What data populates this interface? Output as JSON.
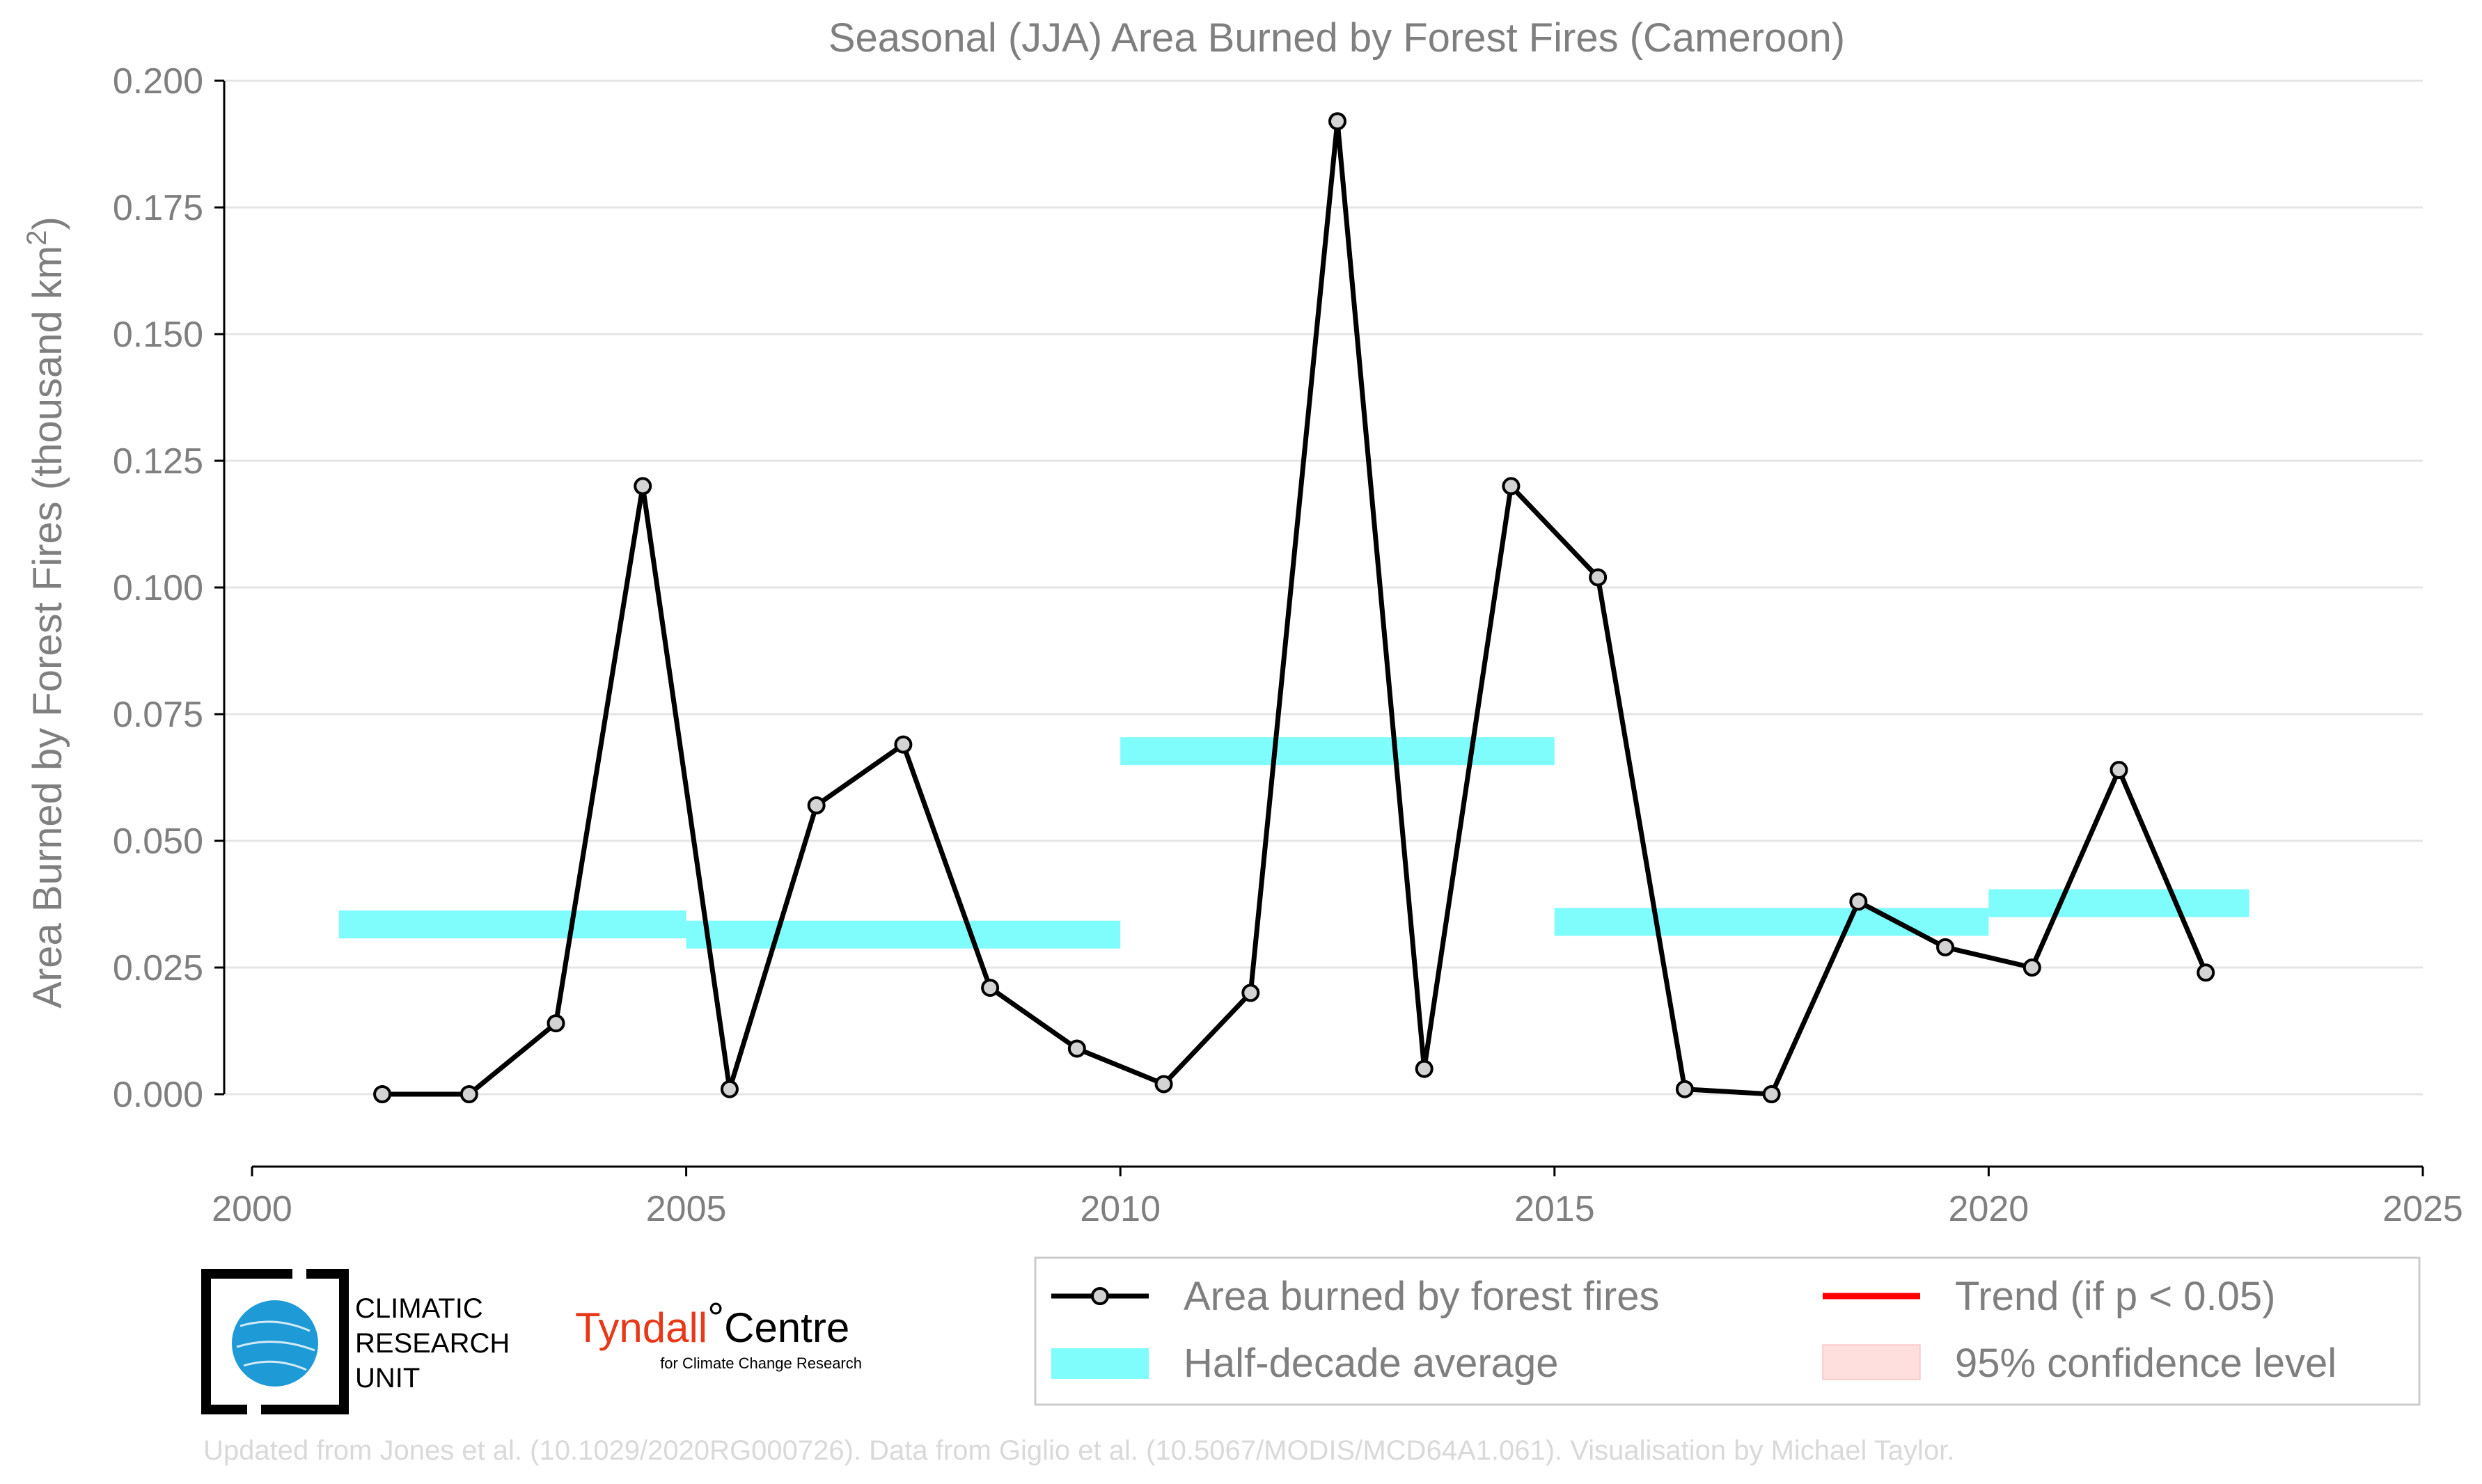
{
  "chart_data": {
    "type": "line",
    "title": "Seasonal (JJA) Area Burned by Forest Fires (Cameroon)",
    "ylabel": "Area Burned by Forest Fires (thousand km",
    "ylabel_sup": "2",
    "ylabel_close": ")",
    "xlabel": "",
    "xlim": [
      2000,
      2025
    ],
    "ylim": [
      -0.014,
      0.2
    ],
    "grid": true,
    "x_ticks": [
      "2000",
      "2005",
      "2010",
      "2015",
      "2020",
      "2025"
    ],
    "y_ticks": [
      "0.000",
      "0.025",
      "0.050",
      "0.075",
      "0.100",
      "0.125",
      "0.150",
      "0.175",
      "0.200"
    ],
    "series": [
      {
        "name": "Area burned by forest fires",
        "color": "#000000",
        "marker_fill": "#d3d3d3",
        "x": [
          2001.5,
          2002.5,
          2003.5,
          2004.5,
          2005.5,
          2006.5,
          2007.5,
          2008.5,
          2009.5,
          2010.5,
          2011.5,
          2012.5,
          2013.5,
          2014.5,
          2015.5,
          2016.5,
          2017.5,
          2018.5,
          2019.5,
          2020.5,
          2021.5,
          2022.5
        ],
        "y": [
          0.0,
          0.0,
          0.014,
          0.12,
          0.001,
          0.057,
          0.069,
          0.021,
          0.009,
          0.002,
          0.02,
          0.192,
          0.005,
          0.12,
          0.102,
          0.001,
          0.0,
          0.038,
          0.029,
          0.025,
          0.064,
          0.024
        ]
      }
    ],
    "half_decade_averages": {
      "name": "Half-decade average",
      "color": "#7ffcfc",
      "bands": [
        {
          "x0": 2001,
          "x1": 2005,
          "y": 0.0335
        },
        {
          "x0": 2005,
          "x1": 2010,
          "y": 0.0315
        },
        {
          "x0": 2010,
          "x1": 2015,
          "y": 0.0677
        },
        {
          "x0": 2015,
          "x1": 2020,
          "y": 0.034
        },
        {
          "x0": 2020,
          "x1": 2023,
          "y": 0.0377
        }
      ]
    },
    "legend": {
      "placement": "bottom-right",
      "entries": [
        {
          "key": "area",
          "label": "Area burned by forest fires"
        },
        {
          "key": "trend",
          "label": "Trend (if p < 0.05)",
          "color": "#ff0000"
        },
        {
          "key": "half",
          "label": "Half-decade average",
          "color": "#7ffcfc"
        },
        {
          "key": "ci",
          "label": "95% confidence level",
          "color": "#ffdede"
        }
      ]
    }
  },
  "logos": {
    "cru_line1": "CLIMATIC",
    "cru_line2": "RESEARCH",
    "cru_line3": "UNIT",
    "tyndall_main": "Tyndall",
    "tyndall_degree": "°",
    "tyndall_centre": "Centre",
    "tyndall_sub": "for Climate Change Research"
  },
  "footer": "Updated from Jones et al. (10.1029/2020RG000726). Data from Giglio et al. (10.5067/MODIS/MCD64A1.061). Visualisation by Michael Taylor."
}
